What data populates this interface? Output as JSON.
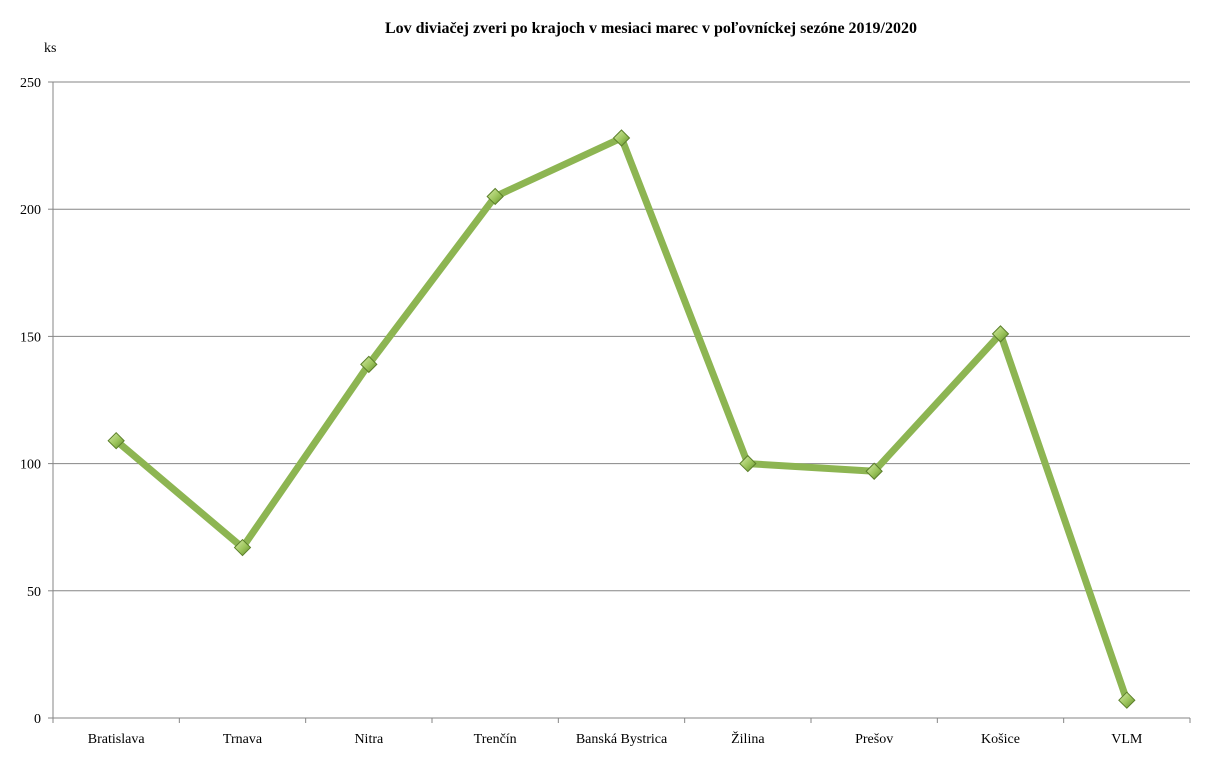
{
  "chart_data": {
    "type": "line",
    "title": "Lov diviačej zveri po krajoch v mesiaci marec v poľovníckej sezóne 2019/2020",
    "ylabel": "ks",
    "xlabel": "",
    "categories": [
      "Bratislava",
      "Trnava",
      "Nitra",
      "Trenčín",
      "Banská Bystrica",
      "Žilina",
      "Prešov",
      "Košice",
      "VLM"
    ],
    "series": [
      {
        "values": [
          109,
          67,
          139,
          205,
          228,
          100,
          97,
          151,
          7
        ]
      }
    ],
    "ylim": [
      0,
      250
    ],
    "yticks": [
      0,
      50,
      100,
      150,
      200,
      250
    ],
    "grid": "horizontal",
    "legend": "none",
    "line_color": "#8db552",
    "marker": "diamond",
    "marker_color": "#9bc45a"
  }
}
